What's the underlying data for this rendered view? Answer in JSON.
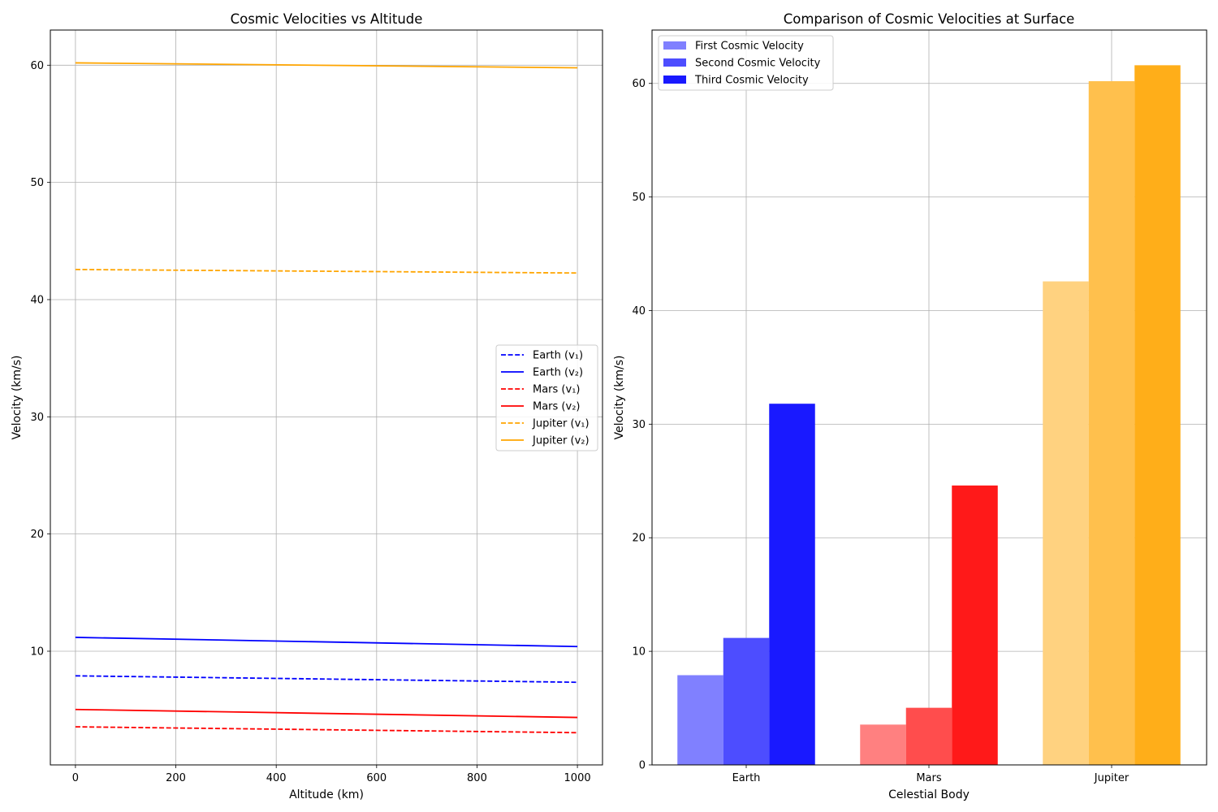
{
  "chart_data": [
    {
      "type": "line",
      "title": "Cosmic Velocities vs Altitude",
      "xlabel": "Altitude (km)",
      "ylabel": "Velocity (km/s)",
      "xlim": [
        -50,
        1050
      ],
      "ylim": [
        0.3,
        63
      ],
      "xticks": [
        0,
        200,
        400,
        600,
        800,
        1000
      ],
      "yticks": [
        10,
        20,
        30,
        40,
        50,
        60
      ],
      "grid": true,
      "legend_position": "center-right",
      "x": [
        0,
        1000
      ],
      "series": [
        {
          "name": "Earth (v₁)",
          "color": "#0000ff",
          "style": "dashed",
          "values": [
            7.9,
            7.35
          ]
        },
        {
          "name": "Earth (v₂)",
          "color": "#0000ff",
          "style": "solid",
          "values": [
            11.18,
            10.4
          ]
        },
        {
          "name": "Mars (v₁)",
          "color": "#ff0000",
          "style": "dashed",
          "values": [
            3.55,
            3.05
          ]
        },
        {
          "name": "Mars (v₂)",
          "color": "#ff0000",
          "style": "solid",
          "values": [
            5.03,
            4.35
          ]
        },
        {
          "name": "Jupiter (v₁)",
          "color": "#ffa500",
          "style": "dashed",
          "values": [
            42.57,
            42.27
          ]
        },
        {
          "name": "Jupiter (v₂)",
          "color": "#ffa500",
          "style": "solid",
          "values": [
            60.2,
            59.78
          ]
        }
      ]
    },
    {
      "type": "bar",
      "title": "Comparison of Cosmic Velocities at Surface",
      "xlabel": "Celestial Body",
      "ylabel": "Velocity (km/s)",
      "ylim": [
        0,
        64.7
      ],
      "yticks": [
        0,
        10,
        20,
        30,
        40,
        50,
        60
      ],
      "grid": true,
      "legend_position": "top-left",
      "categories": [
        "Earth",
        "Mars",
        "Jupiter"
      ],
      "bar_colors": [
        "#0000ff",
        "#ff0000",
        "#ffa500"
      ],
      "series": [
        {
          "name": "First Cosmic Velocity",
          "opacity": 0.5,
          "legend_color": "#0000ff",
          "values": [
            7.9,
            3.55,
            42.57
          ]
        },
        {
          "name": "Second Cosmic Velocity",
          "opacity": 0.7,
          "legend_color": "#0000ff",
          "values": [
            11.18,
            5.03,
            60.2
          ]
        },
        {
          "name": "Third Cosmic Velocity",
          "opacity": 0.9,
          "legend_color": "#0000ff",
          "values": [
            31.8,
            24.6,
            61.6
          ]
        }
      ]
    }
  ]
}
